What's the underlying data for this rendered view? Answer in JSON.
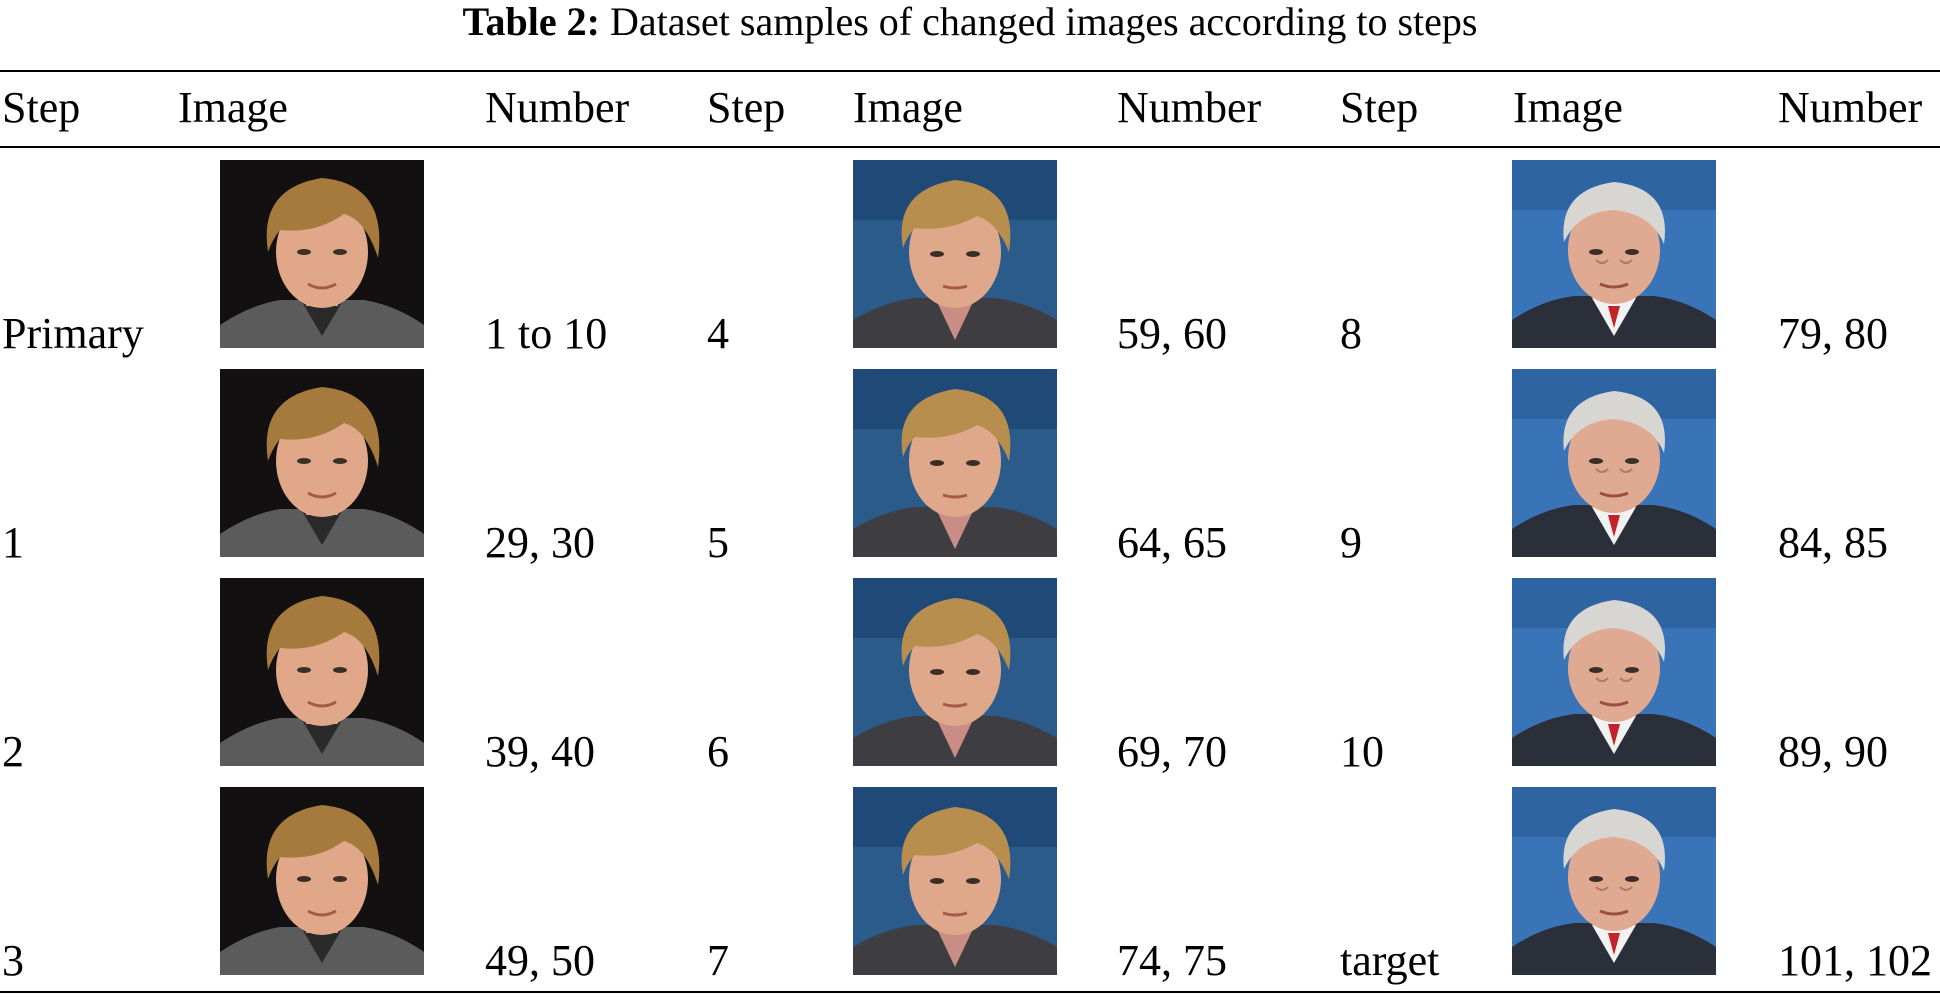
{
  "caption": {
    "label": "Table 2:",
    "text": "Dataset samples of changed images according to steps"
  },
  "headers": [
    "Step",
    "Image",
    "Number",
    "Step",
    "Image",
    "Number",
    "Step",
    "Image",
    "Number"
  ],
  "rows": [
    {
      "step1": "Primary",
      "number1": "1 to 10",
      "step2": "4",
      "number2": "59, 60",
      "step3": "8",
      "number3": "79, 80"
    },
    {
      "step1": "1",
      "number1": "29, 30",
      "step2": "5",
      "number2": "64, 65",
      "step3": "9",
      "number3": "84, 85"
    },
    {
      "step1": "2",
      "number1": "39, 40",
      "step2": "6",
      "number2": "69, 70",
      "step3": "10",
      "number3": "89, 90"
    },
    {
      "step1": "3",
      "number1": "49, 50",
      "step2": "7",
      "number2": "74, 75",
      "step3": "target",
      "number3": "101, 102"
    }
  ],
  "images": {
    "column1": {
      "subject": "young-man-portrait",
      "background": "#111111"
    },
    "column2": {
      "subject": "morphing-portrait",
      "background": "#2a5a8a"
    },
    "column3": {
      "subject": "older-man-portrait",
      "background": "#3a72b5"
    }
  }
}
